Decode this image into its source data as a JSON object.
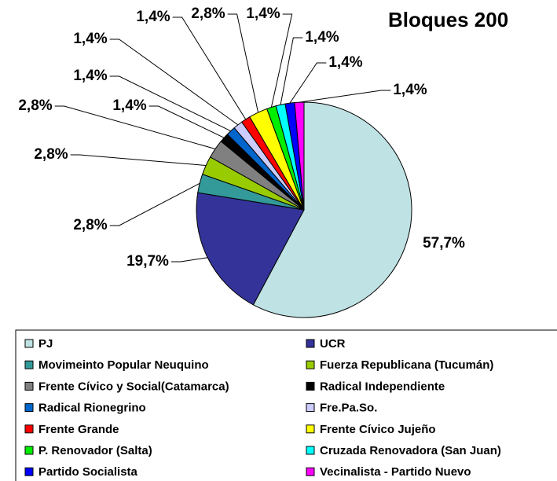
{
  "chart_data": {
    "type": "pie",
    "title": "Bloques 200",
    "categories": [
      "PJ",
      "UCR",
      "Movimeinto Popular Neuquino",
      "Fuerza Republicana (Tucumán)",
      "Frente Cívico y Social(Catamarca)",
      "Radical Independiente",
      "Radical Rionegrino",
      "Fre.Pa.So.",
      "Frente Grande",
      "Frente Cívico Jujeño",
      "P. Renovador (Salta)",
      "Cruzada Renovadora (San Juan)",
      "Partido Socialista",
      "Vecinalista - Partido Nuevo"
    ],
    "values": [
      57.7,
      19.7,
      2.8,
      2.8,
      2.8,
      1.4,
      1.4,
      1.4,
      1.4,
      2.8,
      1.4,
      1.4,
      1.4,
      1.4
    ],
    "value_labels": [
      "57,7%",
      "19,7%",
      "2,8%",
      "2,8%",
      "2,8%",
      "1,4%",
      "1,4%",
      "1,4%",
      "1,4%",
      "2,8%",
      "1,4%",
      "1,4%",
      "1,4%",
      "1,4%"
    ],
    "colors": [
      "#bfe2e4",
      "#333399",
      "#339999",
      "#99cc00",
      "#808080",
      "#000000",
      "#0066cc",
      "#ccccff",
      "#ff0000",
      "#ffff00",
      "#00ee00",
      "#00ffff",
      "#0000ff",
      "#ff00ff"
    ]
  }
}
